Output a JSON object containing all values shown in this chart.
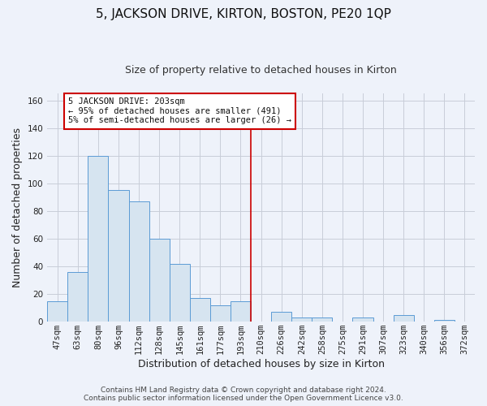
{
  "title": "5, JACKSON DRIVE, KIRTON, BOSTON, PE20 1QP",
  "subtitle": "Size of property relative to detached houses in Kirton",
  "xlabel": "Distribution of detached houses by size in Kirton",
  "ylabel": "Number of detached properties",
  "bar_labels": [
    "47sqm",
    "63sqm",
    "80sqm",
    "96sqm",
    "112sqm",
    "128sqm",
    "145sqm",
    "161sqm",
    "177sqm",
    "193sqm",
    "210sqm",
    "226sqm",
    "242sqm",
    "258sqm",
    "275sqm",
    "291sqm",
    "307sqm",
    "323sqm",
    "340sqm",
    "356sqm",
    "372sqm"
  ],
  "bar_values": [
    15,
    36,
    120,
    95,
    87,
    60,
    42,
    17,
    12,
    15,
    0,
    7,
    3,
    3,
    0,
    3,
    0,
    5,
    0,
    1,
    0
  ],
  "bar_color": "#d6e4f0",
  "bar_edge_color": "#5b9bd5",
  "vline_x_idx": 10,
  "vline_color": "#cc0000",
  "annotation_title": "5 JACKSON DRIVE: 203sqm",
  "annotation_line1": "← 95% of detached houses are smaller (491)",
  "annotation_line2": "5% of semi-detached houses are larger (26) →",
  "annotation_box_color": "#ffffff",
  "annotation_box_edge": "#cc0000",
  "ylim": [
    0,
    165
  ],
  "yticks": [
    0,
    20,
    40,
    60,
    80,
    100,
    120,
    140,
    160
  ],
  "footer1": "Contains HM Land Registry data © Crown copyright and database right 2024.",
  "footer2": "Contains public sector information licensed under the Open Government Licence v3.0.",
  "bg_color": "#eef2fa",
  "grid_color": "#c8cdd8",
  "title_fontsize": 11,
  "subtitle_fontsize": 9,
  "axis_label_fontsize": 9,
  "tick_fontsize": 7.5,
  "annotation_fontsize": 7.5,
  "footer_fontsize": 6.5
}
